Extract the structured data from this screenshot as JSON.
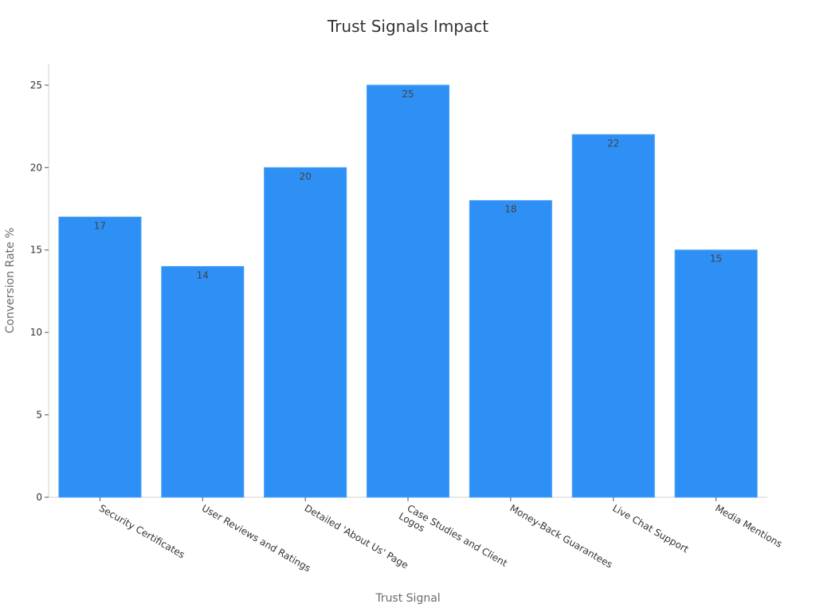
{
  "chart_data": {
    "type": "bar",
    "title": "Trust Signals Impact",
    "xlabel": "Trust Signal",
    "ylabel": "Conversion Rate %",
    "categories": [
      "Security Certificates",
      "User Reviews and Ratings",
      "Detailed 'About Us' Page",
      "Case Studies and Client Logos",
      "Money-Back Guarantees",
      "Live Chat Support",
      "Media Mentions"
    ],
    "category_lines": [
      [
        "Security Certificates"
      ],
      [
        "User Reviews and Ratings"
      ],
      [
        "Detailed 'About Us' Page"
      ],
      [
        "Case Studies and Client",
        "Logos"
      ],
      [
        "Money-Back Guarantees"
      ],
      [
        "Live Chat Support"
      ],
      [
        "Media Mentions"
      ]
    ],
    "values": [
      17,
      14,
      20,
      25,
      18,
      22,
      15
    ],
    "ylim": [
      0,
      26.3
    ],
    "yticks": [
      0,
      5,
      10,
      15,
      20,
      25
    ],
    "grid": false,
    "legend": "none",
    "bar_color": "#2e90f5"
  }
}
